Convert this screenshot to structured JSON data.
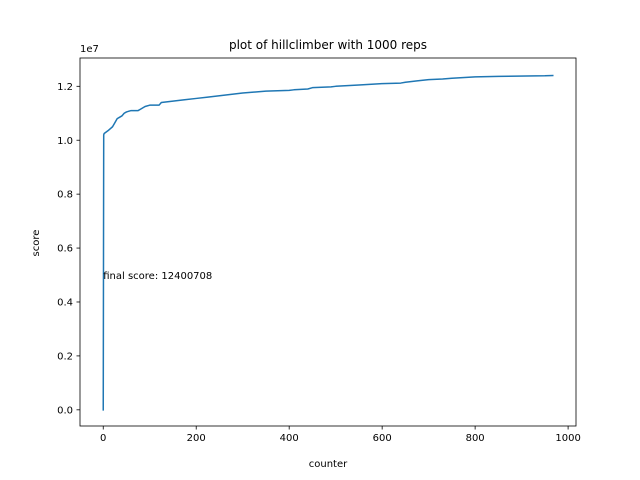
{
  "chart_data": {
    "type": "line",
    "title": "plot of hillclimber with 1000 reps",
    "xlabel": "counter",
    "ylabel": "score",
    "y_offset_label": "1e7",
    "xlim": [
      -50,
      1017
    ],
    "ylim": [
      -600000,
      13050000
    ],
    "xticks": [
      0,
      200,
      400,
      600,
      800,
      1000
    ],
    "xtick_labels": [
      "0",
      "200",
      "400",
      "600",
      "800",
      "1000"
    ],
    "yticks": [
      0,
      2000000,
      4000000,
      6000000,
      8000000,
      10000000,
      12000000
    ],
    "ytick_labels": [
      "0.0",
      "0.2",
      "0.4",
      "0.6",
      "0.8",
      "1.0",
      "1.2"
    ],
    "grid": false,
    "annotation": {
      "text": "final score: 12400708",
      "x": 0,
      "y": 5000000
    },
    "series": [
      {
        "color": "#1f77b4",
        "x": [
          0,
          1,
          2,
          10,
          20,
          25,
          30,
          35,
          40,
          45,
          50,
          60,
          75,
          80,
          85,
          90,
          100,
          110,
          120,
          125,
          150,
          175,
          200,
          225,
          250,
          275,
          300,
          320,
          350,
          400,
          410,
          440,
          450,
          490,
          500,
          550,
          600,
          640,
          650,
          675,
          700,
          730,
          750,
          800,
          850,
          950,
          967
        ],
        "y": [
          0,
          10200000,
          10250000,
          10350000,
          10500000,
          10650000,
          10800000,
          10850000,
          10900000,
          11000000,
          11050000,
          11100000,
          11100000,
          11150000,
          11200000,
          11250000,
          11300000,
          11300000,
          11300000,
          11400000,
          11450000,
          11500000,
          11550000,
          11600000,
          11650000,
          11700000,
          11750000,
          11780000,
          11820000,
          11850000,
          11870000,
          11900000,
          11950000,
          11980000,
          12000000,
          12050000,
          12100000,
          12120000,
          12150000,
          12200000,
          12250000,
          12270000,
          12300000,
          12350000,
          12370000,
          12390000,
          12400708
        ]
      }
    ]
  }
}
